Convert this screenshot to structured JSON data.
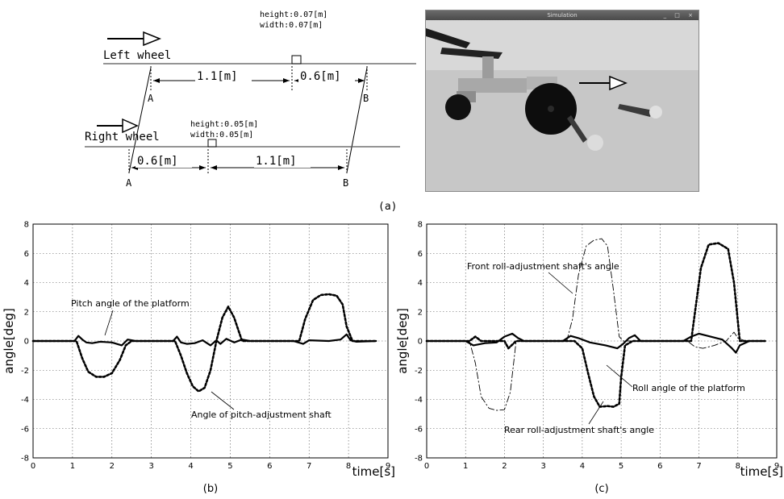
{
  "diagram": {
    "left_wheel_label": "Left wheel",
    "right_wheel_label": "Right wheel",
    "left_bump": {
      "height": "height:0.07[m]",
      "width": "width:0.07[m]"
    },
    "right_bump": {
      "height": "height:0.05[m]",
      "width": "width:0.05[m]"
    },
    "left_dims": [
      "1.1[m]",
      "0.6[m]"
    ],
    "right_dims": [
      "0.6[m]",
      "1.1[m]"
    ],
    "point_labels": [
      "A",
      "B",
      "A",
      "B"
    ]
  },
  "simulation": {
    "title": "Simulation",
    "controls": "_ □ ×"
  },
  "panel_labels": [
    "(a)",
    "(b)",
    "(c)"
  ],
  "colors": {
    "line": "#000000",
    "grid": "#555555",
    "sim_bg": "#c9c9c9"
  },
  "chart_data": [
    {
      "type": "line",
      "panel": "(b)",
      "xlabel": "time[s]",
      "ylabel": "angle[deg]",
      "xlim": [
        0,
        9
      ],
      "ylim": [
        -8,
        8
      ],
      "xticks": [
        0,
        1,
        2,
        3,
        4,
        5,
        6,
        7,
        8,
        9
      ],
      "yticks": [
        -8,
        -6,
        -4,
        -2,
        0,
        2,
        4,
        6,
        8
      ],
      "grid": true,
      "annotations": [
        "Pitch angle of the platform",
        "Angle of pitch-adjustment shaft"
      ],
      "series": [
        {
          "name": "Pitch angle of the platform",
          "style": "solid-thick",
          "x": [
            0,
            1.05,
            1.15,
            1.25,
            1.35,
            1.5,
            1.7,
            2.0,
            2.25,
            2.4,
            2.6,
            3.0,
            3.55,
            3.65,
            3.75,
            3.9,
            4.1,
            4.3,
            4.5,
            4.65,
            4.75,
            4.9,
            5.1,
            5.3,
            5.5,
            6.0,
            6.6,
            6.85,
            7.0,
            7.5,
            7.8,
            7.95,
            8.05,
            8.2,
            8.7
          ],
          "y": [
            0,
            0,
            0.35,
            0.1,
            -0.1,
            -0.15,
            -0.05,
            -0.1,
            -0.3,
            0.1,
            0,
            0,
            0,
            0.3,
            -0.1,
            -0.2,
            -0.15,
            0.05,
            -0.3,
            0.05,
            -0.2,
            0.15,
            -0.1,
            0.1,
            0,
            0,
            0,
            -0.2,
            0.05,
            0,
            0.1,
            0.45,
            0.05,
            -0.05,
            0
          ]
        },
        {
          "name": "Angle of pitch-adjustment shaft",
          "style": "dotted-thick",
          "x": [
            0,
            1.1,
            1.25,
            1.4,
            1.6,
            1.8,
            2.0,
            2.2,
            2.35,
            2.5,
            3.6,
            3.75,
            3.9,
            4.05,
            4.2,
            4.35,
            4.5,
            4.65,
            4.8,
            4.95,
            5.1,
            5.3,
            6.75,
            6.9,
            7.1,
            7.3,
            7.5,
            7.7,
            7.85,
            7.95,
            8.1,
            8.7
          ],
          "y": [
            0,
            0,
            -1.2,
            -2.1,
            -2.45,
            -2.45,
            -2.2,
            -1.3,
            -0.3,
            0,
            0,
            -1.0,
            -2.2,
            -3.1,
            -3.45,
            -3.2,
            -2.0,
            0,
            1.6,
            2.35,
            1.6,
            0,
            0,
            1.5,
            2.8,
            3.15,
            3.2,
            3.1,
            2.5,
            1.0,
            0,
            0
          ]
        }
      ]
    },
    {
      "type": "line",
      "panel": "(c)",
      "xlabel": "time[s]",
      "ylabel": "angle[deg]",
      "xlim": [
        0,
        9
      ],
      "ylim": [
        -8,
        8
      ],
      "xticks": [
        0,
        1,
        2,
        3,
        4,
        5,
        6,
        7,
        8,
        9
      ],
      "yticks": [
        -8,
        -6,
        -4,
        -2,
        0,
        2,
        4,
        6,
        8
      ],
      "grid": true,
      "annotations": [
        "Front roll-adjustment shaft's angle",
        "Roll angle of the platform",
        "Rear roll-adjustment shaft's angle"
      ],
      "series": [
        {
          "name": "Roll angle of the platform",
          "style": "solid-thick",
          "x": [
            0,
            1.0,
            1.2,
            1.5,
            1.8,
            2.0,
            2.2,
            2.35,
            2.5,
            3.5,
            3.7,
            3.9,
            4.2,
            4.6,
            4.9,
            5.05,
            5.2,
            5.35,
            5.5,
            6.6,
            6.8,
            7.0,
            7.3,
            7.6,
            7.85,
            7.95,
            8.05,
            8.3,
            8.7
          ],
          "y": [
            0,
            0,
            -0.3,
            -0.15,
            -0.1,
            0.3,
            0.5,
            0.2,
            0,
            0,
            0.35,
            0.2,
            -0.1,
            -0.3,
            -0.5,
            -0.2,
            0.2,
            0.4,
            0,
            0,
            0.3,
            0.5,
            0.3,
            0.1,
            -0.5,
            -0.8,
            -0.3,
            0,
            0
          ]
        },
        {
          "name": "Rear roll-adjustment shaft's angle",
          "style": "dotted-thick",
          "x": [
            0,
            1.1,
            1.25,
            1.4,
            2.0,
            2.1,
            2.3,
            3.8,
            4.0,
            4.15,
            4.3,
            4.45,
            4.65,
            4.8,
            4.95,
            5.0,
            5.1,
            5.3,
            6.8,
            6.9,
            7.05,
            7.25,
            7.5,
            7.75,
            7.9,
            8.05,
            8.7
          ],
          "y": [
            0,
            0,
            0.3,
            0,
            0,
            -0.5,
            0,
            0,
            -0.5,
            -2.2,
            -3.8,
            -4.5,
            -4.45,
            -4.5,
            -4.3,
            -2.5,
            -0.3,
            0,
            0,
            2.0,
            5.0,
            6.6,
            6.7,
            6.3,
            4.0,
            0,
            0
          ]
        },
        {
          "name": "Front roll-adjustment shaft's angle",
          "style": "dash-dot-thin",
          "x": [
            0,
            1.1,
            1.25,
            1.4,
            1.6,
            1.8,
            2.0,
            2.15,
            2.3,
            3.6,
            3.75,
            3.9,
            4.1,
            4.3,
            4.5,
            4.65,
            4.8,
            4.95,
            5.05,
            5.2,
            6.7,
            6.9,
            7.1,
            7.4,
            7.7,
            7.9,
            8.0,
            8.2,
            8.7
          ],
          "y": [
            0,
            0,
            -1.5,
            -3.8,
            -4.6,
            -4.75,
            -4.7,
            -3.5,
            0,
            0,
            1.5,
            4.5,
            6.5,
            6.9,
            7.0,
            6.5,
            3.5,
            0.3,
            0,
            0,
            0,
            -0.4,
            -0.5,
            -0.3,
            0,
            0.6,
            0.2,
            0,
            0
          ]
        }
      ]
    }
  ]
}
